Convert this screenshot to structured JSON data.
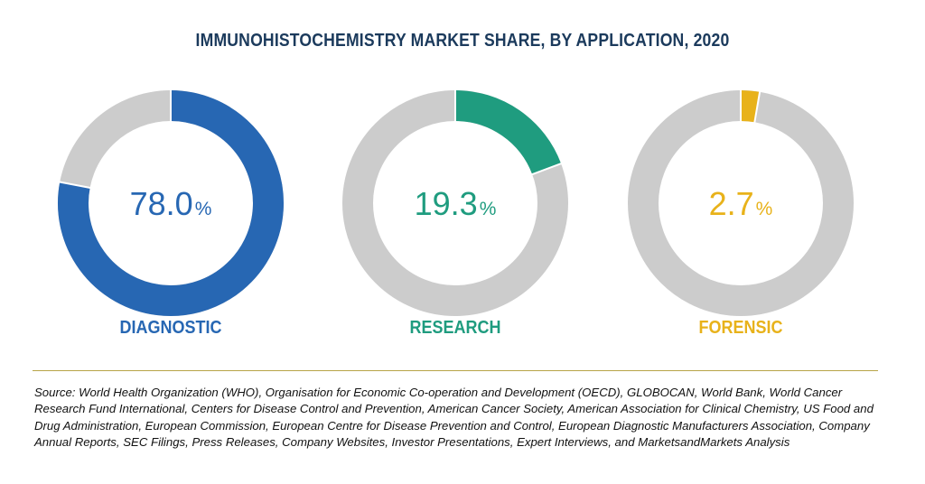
{
  "chart_data": {
    "type": "pie",
    "variant": "donut",
    "title": "IMMUNOHISTOCHEMISTRY MARKET SHARE, BY APPLICATION, 2020",
    "series": [
      {
        "name": "DIAGNOSTIC",
        "value": 78.0,
        "value_label": "78.0",
        "unit": "%",
        "color": "#2767b3"
      },
      {
        "name": "RESEARCH",
        "value": 19.3,
        "value_label": "19.3",
        "unit": "%",
        "color": "#1f9c7f"
      },
      {
        "name": "FORENSIC",
        "value": 2.7,
        "value_label": "2.7",
        "unit": "%",
        "color": "#e8b21a"
      }
    ],
    "remainder_color": "#cccccc"
  },
  "source": "Source: World Health Organization (WHO), Organisation for Economic Co-operation and Development (OECD), GLOBOCAN, World Bank, World Cancer Research Fund International, Centers for Disease Control and Prevention, American Cancer Society, American Association for Clinical Chemistry, US Food and Drug Administration, European Commission, European Centre for Disease Prevention and Control, European Diagnostic Manufacturers Association, Company Annual Reports, SEC Filings, Press Releases, Company Websites, Investor Presentations, Expert Interviews, and MarketsandMarkets Analysis"
}
